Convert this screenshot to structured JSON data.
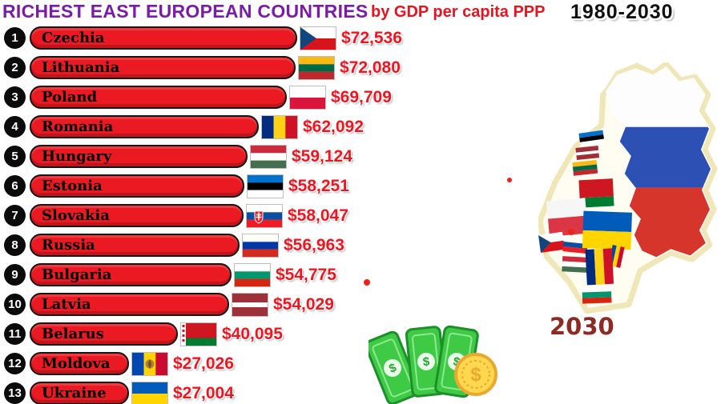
{
  "header": {
    "title": "RICHEST EAST EUROPEAN COUNTRIES",
    "subtitle": "by GDP per capita PPP",
    "year_range": "1980-2030"
  },
  "year_label": "2030",
  "chart_data": {
    "type": "bar",
    "orientation": "horizontal",
    "title": "Richest East European Countries by GDP per capita PPP",
    "unit": "USD, PPP",
    "year_shown": 2030,
    "year_range": [
      1980,
      2030
    ],
    "max_value": 72536,
    "entries": [
      {
        "rank": 1,
        "country": "Czechia",
        "value": 72536,
        "value_label": "$72,536",
        "flag": "czechia-flag"
      },
      {
        "rank": 2,
        "country": "Lithuania",
        "value": 72080,
        "value_label": "$72,080",
        "flag": "lithuania-flag"
      },
      {
        "rank": 3,
        "country": "Poland",
        "value": 69709,
        "value_label": "$69,709",
        "flag": "poland-flag"
      },
      {
        "rank": 4,
        "country": "Romania",
        "value": 62092,
        "value_label": "$62,092",
        "flag": "romania-flag"
      },
      {
        "rank": 5,
        "country": "Hungary",
        "value": 59124,
        "value_label": "$59,124",
        "flag": "hungary-flag"
      },
      {
        "rank": 6,
        "country": "Estonia",
        "value": 58251,
        "value_label": "$58,251",
        "flag": "estonia-flag"
      },
      {
        "rank": 7,
        "country": "Slovakia",
        "value": 58047,
        "value_label": "$58,047",
        "flag": "slovakia-flag"
      },
      {
        "rank": 8,
        "country": "Russia",
        "value": 56963,
        "value_label": "$56,963",
        "flag": "russia-flag"
      },
      {
        "rank": 9,
        "country": "Bulgaria",
        "value": 54775,
        "value_label": "$54,775",
        "flag": "bulgaria-flag"
      },
      {
        "rank": 10,
        "country": "Latvia",
        "value": 54029,
        "value_label": "$54,029",
        "flag": "latvia-flag"
      },
      {
        "rank": 11,
        "country": "Belarus",
        "value": 40095,
        "value_label": "$40,095",
        "flag": "belarus-flag"
      },
      {
        "rank": 12,
        "country": "Moldova",
        "value": 27026,
        "value_label": "$27,026",
        "flag": "moldova-flag"
      },
      {
        "rank": 13,
        "country": "Ukraine",
        "value": 27004,
        "value_label": "$27,004",
        "flag": "ukraine-flag"
      }
    ]
  },
  "colors": {
    "bar": "#eb1a22",
    "title": "#7a1ca8",
    "subtitle": "#e8131f",
    "value": "#ee1520",
    "year_label": "#8d2a24"
  },
  "map": {
    "name": "eastern-europe-map",
    "regions": [
      "Estonia",
      "Latvia",
      "Lithuania",
      "Belarus",
      "Poland",
      "Czechia",
      "Slovakia",
      "Hungary",
      "Ukraine",
      "Moldova",
      "Romania",
      "Bulgaria",
      "Russia"
    ]
  },
  "icons": {
    "money": "cash-bills-icon",
    "coin": "dollar-coin-icon"
  }
}
